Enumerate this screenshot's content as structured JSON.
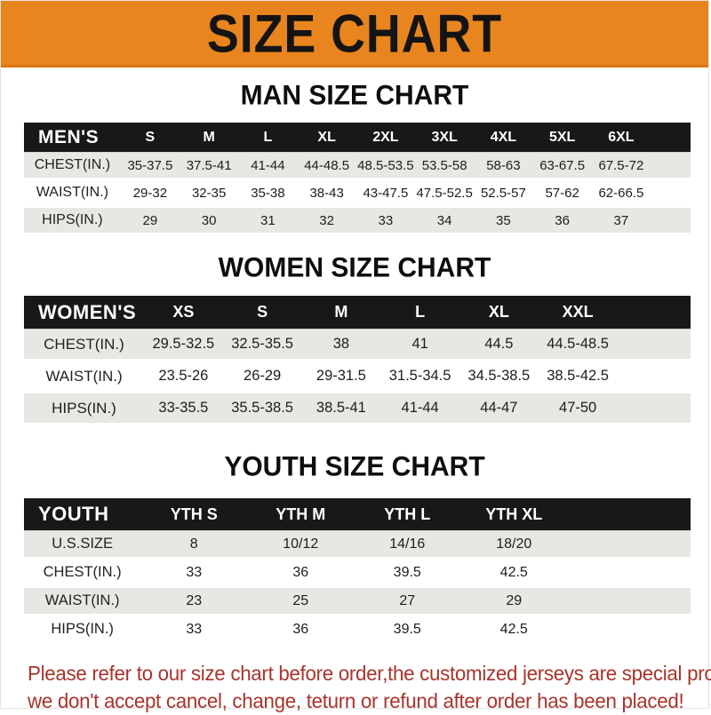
{
  "banner": {
    "title": "SIZE CHART",
    "background_color": "#E8851E",
    "text_color": "#141414"
  },
  "sections": [
    {
      "heading": "MAN SIZE CHART",
      "header_label": "MEN'S",
      "columns": [
        "S",
        "M",
        "L",
        "XL",
        "2XL",
        "3XL",
        "4XL",
        "5XL",
        "6XL"
      ],
      "rows": [
        {
          "label": "CHEST(IN.)",
          "values": [
            "35-37.5",
            "37.5-41",
            "41-44",
            "44-48.5",
            "48.5-53.5",
            "53.5-58",
            "58-63",
            "63-67.5",
            "67.5-72"
          ]
        },
        {
          "label": "WAIST(IN.)",
          "values": [
            "29-32",
            "32-35",
            "35-38",
            "38-43",
            "43-47.5",
            "47.5-52.5",
            "52.5-57",
            "57-62",
            "62-66.5"
          ]
        },
        {
          "label": "HIPS(IN.)",
          "values": [
            "29",
            "30",
            "31",
            "32",
            "33",
            "34",
            "35",
            "36",
            "37"
          ]
        }
      ]
    },
    {
      "heading": "WOMEN SIZE CHART",
      "header_label": "WOMEN'S",
      "columns": [
        "XS",
        "S",
        "M",
        "L",
        "XL",
        "XXL"
      ],
      "rows": [
        {
          "label": "CHEST(IN.)",
          "values": [
            "29.5-32.5",
            "32.5-35.5",
            "38",
            "41",
            "44.5",
            "44.5-48.5"
          ]
        },
        {
          "label": "WAIST(IN.)",
          "values": [
            "23.5-26",
            "26-29",
            "29-31.5",
            "31.5-34.5",
            "34.5-38.5",
            "38.5-42.5"
          ]
        },
        {
          "label": "HIPS(IN.)",
          "values": [
            "33-35.5",
            "35.5-38.5",
            "38.5-41",
            "41-44",
            "44-47",
            "47-50"
          ]
        }
      ]
    },
    {
      "heading": "YOUTH SIZE CHART",
      "header_label": "YOUTH",
      "columns": [
        "YTH S",
        "YTH M",
        "YTH L",
        "YTH XL"
      ],
      "rows": [
        {
          "label": "U.S.SIZE",
          "values": [
            "8",
            "10/12",
            "14/16",
            "18/20"
          ]
        },
        {
          "label": "CHEST(IN.)",
          "values": [
            "33",
            "36",
            "39.5",
            "42.5"
          ]
        },
        {
          "label": "WAIST(IN.)",
          "values": [
            "23",
            "25",
            "27",
            "29"
          ]
        },
        {
          "label": "HIPS(IN.)",
          "values": [
            "33",
            "36",
            "39.5",
            "42.5"
          ]
        }
      ]
    }
  ],
  "disclaimer": {
    "line1": "Please refer to our size chart before order,the customized jerseys are special products,",
    "line2": "we don't accept cancel, change, teturn or refund after order has been placed!",
    "text_color": "#A8342C"
  },
  "colors": {
    "banner_orange": "#E8851E",
    "table_header_black": "#181818",
    "row_gray": "#E8E7E4",
    "disclaimer_red": "#A8342C"
  },
  "chart_data": [
    {
      "type": "table",
      "title": "MAN SIZE CHART",
      "columns": [
        "MEN'S",
        "S",
        "M",
        "L",
        "XL",
        "2XL",
        "3XL",
        "4XL",
        "5XL",
        "6XL"
      ],
      "rows": [
        [
          "CHEST(IN.)",
          "35-37.5",
          "37.5-41",
          "41-44",
          "44-48.5",
          "48.5-53.5",
          "53.5-58",
          "58-63",
          "63-67.5",
          "67.5-72"
        ],
        [
          "WAIST(IN.)",
          "29-32",
          "32-35",
          "35-38",
          "38-43",
          "43-47.5",
          "47.5-52.5",
          "52.5-57",
          "57-62",
          "62-66.5"
        ],
        [
          "HIPS(IN.)",
          "29",
          "30",
          "31",
          "32",
          "33",
          "34",
          "35",
          "36",
          "37"
        ]
      ]
    },
    {
      "type": "table",
      "title": "WOMEN SIZE CHART",
      "columns": [
        "WOMEN'S",
        "XS",
        "S",
        "M",
        "L",
        "XL",
        "XXL"
      ],
      "rows": [
        [
          "CHEST(IN.)",
          "29.5-32.5",
          "32.5-35.5",
          "38",
          "41",
          "44.5",
          "44.5-48.5"
        ],
        [
          "WAIST(IN.)",
          "23.5-26",
          "26-29",
          "29-31.5",
          "31.5-34.5",
          "34.5-38.5",
          "38.5-42.5"
        ],
        [
          "HIPS(IN.)",
          "33-35.5",
          "35.5-38.5",
          "38.5-41",
          "41-44",
          "44-47",
          "47-50"
        ]
      ]
    },
    {
      "type": "table",
      "title": "YOUTH SIZE CHART",
      "columns": [
        "YOUTH",
        "YTH S",
        "YTH M",
        "YTH L",
        "YTH XL"
      ],
      "rows": [
        [
          "U.S.SIZE",
          "8",
          "10/12",
          "14/16",
          "18/20"
        ],
        [
          "CHEST(IN.)",
          "33",
          "36",
          "39.5",
          "42.5"
        ],
        [
          "WAIST(IN.)",
          "23",
          "25",
          "27",
          "29"
        ],
        [
          "HIPS(IN.)",
          "33",
          "36",
          "39.5",
          "42.5"
        ]
      ]
    }
  ]
}
